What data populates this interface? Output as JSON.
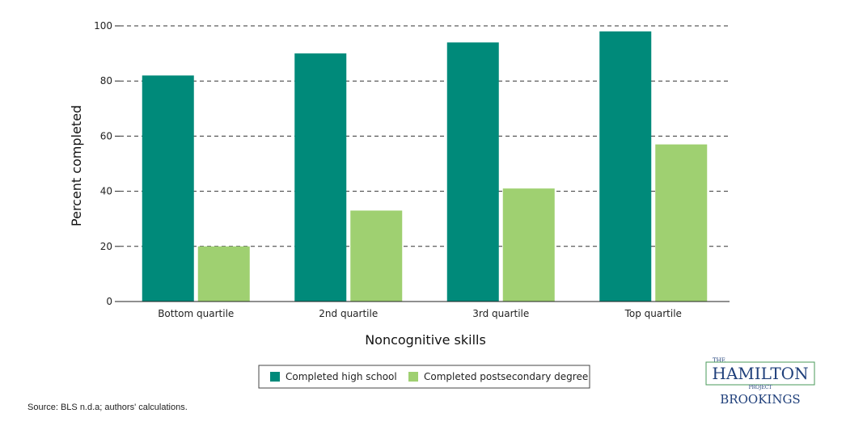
{
  "chart_data": {
    "type": "bar",
    "title": "",
    "xlabel": "Noncognitive skills",
    "ylabel": "Percent completed",
    "categories": [
      "Bottom quartile",
      "2nd quartile",
      "3rd quartile",
      "Top quartile"
    ],
    "series": [
      {
        "name": "Completed high school",
        "values": [
          82,
          90,
          94,
          98
        ],
        "color": "#008a7a"
      },
      {
        "name": "Completed postsecondary degree",
        "values": [
          20,
          33,
          41,
          57
        ],
        "color": "#9fd071"
      }
    ],
    "ylim": [
      0,
      100
    ],
    "yticks": [
      "0",
      "20",
      "40",
      "60",
      "80",
      "100"
    ],
    "grid": "horizontal dashed",
    "legend_position": "bottom-center"
  },
  "source": "Source: BLS n.d.a; authors' calculations.",
  "logo": {
    "the": "THE",
    "hamilton": "HAMILTON",
    "project": "PROJECT",
    "brookings": "BROOKINGS",
    "color": "#1f3f7a",
    "accent": "#4a9a5a"
  }
}
